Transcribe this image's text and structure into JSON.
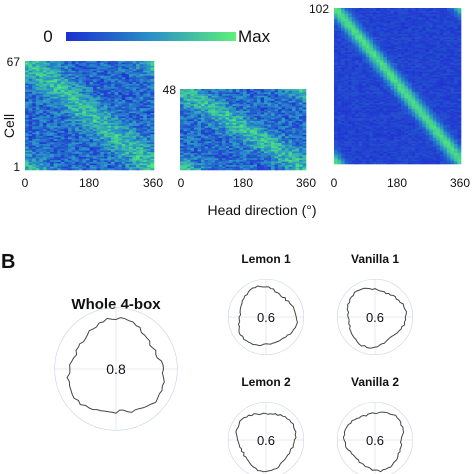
{
  "panel_a": {
    "colorbar": {
      "min_label": "0",
      "max_label": "Max"
    },
    "y_axis_label": "Cell",
    "x_axis_label": "Head direction (°)",
    "x_ticks": [
      "0",
      "180",
      "360"
    ],
    "heatmaps": [
      {
        "top_label": "67",
        "bottom_label": "1",
        "cells": 67
      },
      {
        "top_label": "48",
        "cells": 48
      },
      {
        "top_label": "102",
        "cells": 102
      }
    ]
  },
  "panel_b": {
    "panel_letter": "B",
    "polars": [
      {
        "title": "Whole 4-box",
        "value": "0.8"
      },
      {
        "title": "Lemon 1",
        "value": "0.6"
      },
      {
        "title": "Vanilla 1",
        "value": "0.6"
      },
      {
        "title": "Lemon 2",
        "value": "0.6"
      },
      {
        "title": "Vanilla 2",
        "value": "0.6"
      }
    ]
  },
  "colors": {
    "low": "#2b3fd8",
    "high": "#3de07f",
    "outline": "#444444",
    "grid": "#9aa7c4"
  }
}
